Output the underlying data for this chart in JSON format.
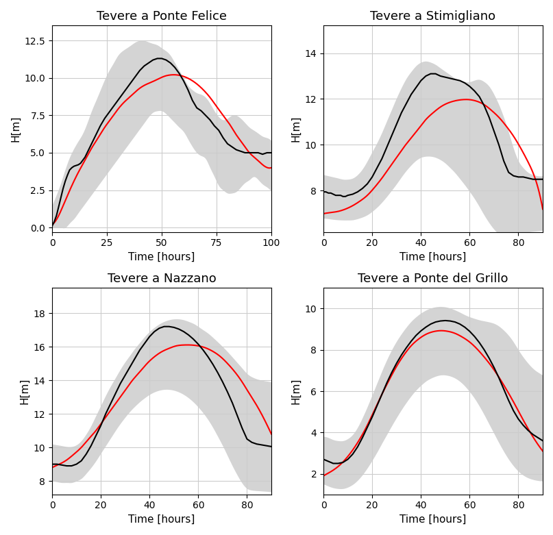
{
  "subplots": [
    {
      "title": "Tevere a Ponte Felice",
      "xlabel": "Time [hours]",
      "ylabel": "H[m]",
      "xlim": [
        0,
        100
      ],
      "ylim": [
        -0.3,
        13.5
      ],
      "yticks": [
        0.0,
        2.5,
        5.0,
        7.5,
        10.0,
        12.5
      ],
      "xticks": [
        0,
        25,
        50,
        75,
        100
      ],
      "obs_x": [
        0,
        1,
        2,
        3,
        4,
        5,
        6,
        7,
        8,
        9,
        10,
        11,
        12,
        13,
        14,
        15,
        16,
        17,
        18,
        20,
        22,
        24,
        26,
        28,
        30,
        32,
        34,
        36,
        38,
        40,
        42,
        44,
        46,
        48,
        50,
        52,
        54,
        56,
        58,
        60,
        62,
        64,
        66,
        68,
        70,
        72,
        74,
        76,
        78,
        80,
        82,
        84,
        86,
        88,
        90,
        92,
        94,
        96,
        98,
        100
      ],
      "obs_y": [
        0.1,
        0.4,
        0.8,
        1.4,
        2.0,
        2.6,
        3.1,
        3.5,
        3.85,
        4.0,
        4.1,
        4.15,
        4.2,
        4.3,
        4.5,
        4.7,
        5.0,
        5.3,
        5.6,
        6.2,
        6.8,
        7.3,
        7.7,
        8.1,
        8.5,
        8.9,
        9.3,
        9.7,
        10.1,
        10.5,
        10.8,
        11.0,
        11.2,
        11.3,
        11.3,
        11.2,
        11.0,
        10.7,
        10.3,
        9.8,
        9.2,
        8.5,
        8.0,
        7.8,
        7.5,
        7.2,
        6.8,
        6.5,
        6.0,
        5.6,
        5.4,
        5.2,
        5.1,
        5.0,
        5.0,
        5.0,
        5.0,
        4.9,
        5.0,
        5.0
      ],
      "red_x": [
        0,
        3,
        6,
        9,
        12,
        15,
        18,
        21,
        24,
        27,
        30,
        33,
        36,
        39,
        42,
        45,
        48,
        51,
        54,
        57,
        60,
        63,
        66,
        69,
        72,
        75,
        78,
        81,
        84,
        87,
        90,
        93,
        96,
        100
      ],
      "red_y": [
        0.2,
        0.8,
        1.8,
        2.8,
        3.7,
        4.5,
        5.3,
        6.0,
        6.7,
        7.3,
        7.9,
        8.4,
        8.8,
        9.2,
        9.5,
        9.7,
        9.9,
        10.1,
        10.2,
        10.2,
        10.1,
        9.9,
        9.6,
        9.2,
        8.7,
        8.1,
        7.5,
        6.9,
        6.2,
        5.6,
        5.0,
        4.6,
        4.2,
        4.0
      ],
      "upper_x": [
        0,
        2,
        4,
        6,
        8,
        10,
        12,
        14,
        16,
        18,
        20,
        22,
        24,
        26,
        28,
        30,
        32,
        34,
        36,
        38,
        40,
        42,
        44,
        46,
        48,
        50,
        52,
        54,
        56,
        58,
        60,
        62,
        64,
        66,
        68,
        70,
        72,
        74,
        76,
        78,
        80,
        82,
        84,
        86,
        88,
        90,
        92,
        94,
        96,
        98,
        100
      ],
      "upper_y": [
        1.5,
        2.2,
        3.0,
        3.9,
        4.7,
        5.3,
        5.8,
        6.3,
        7.0,
        7.8,
        8.5,
        9.2,
        9.9,
        10.5,
        11.0,
        11.5,
        11.8,
        12.0,
        12.2,
        12.4,
        12.5,
        12.5,
        12.4,
        12.3,
        12.2,
        12.0,
        11.8,
        11.5,
        11.0,
        10.5,
        10.0,
        9.5,
        9.2,
        9.0,
        8.9,
        8.7,
        8.3,
        7.8,
        7.4,
        7.2,
        7.3,
        7.5,
        7.5,
        7.3,
        7.0,
        6.7,
        6.5,
        6.3,
        6.1,
        6.0,
        5.8
      ],
      "lower_y": [
        0.0,
        0.0,
        0.0,
        0.0,
        0.3,
        0.6,
        1.0,
        1.4,
        1.8,
        2.2,
        2.6,
        3.0,
        3.4,
        3.8,
        4.2,
        4.6,
        5.0,
        5.4,
        5.8,
        6.2,
        6.6,
        7.0,
        7.4,
        7.7,
        7.8,
        7.8,
        7.6,
        7.3,
        7.0,
        6.7,
        6.4,
        5.9,
        5.4,
        5.0,
        4.8,
        4.6,
        4.0,
        3.4,
        2.8,
        2.5,
        2.3,
        2.3,
        2.4,
        2.7,
        3.0,
        3.2,
        3.4,
        3.2,
        2.9,
        2.7,
        2.4
      ]
    },
    {
      "title": "Tevere a Stimigliano",
      "xlabel": "Time [hours]",
      "ylabel": "H[m]",
      "xlim": [
        0,
        90
      ],
      "ylim": [
        6.2,
        15.2
      ],
      "yticks": [
        8,
        10,
        12,
        14
      ],
      "xticks": [
        0,
        20,
        40,
        60,
        80
      ],
      "obs_x": [
        0,
        1,
        2,
        3,
        4,
        5,
        6,
        7,
        8,
        9,
        10,
        12,
        14,
        16,
        18,
        20,
        22,
        24,
        26,
        28,
        30,
        32,
        34,
        36,
        38,
        40,
        42,
        44,
        46,
        48,
        50,
        52,
        54,
        56,
        58,
        60,
        62,
        64,
        66,
        68,
        70,
        72,
        74,
        76,
        78,
        80,
        82,
        84,
        86,
        88,
        90
      ],
      "obs_y": [
        7.95,
        7.95,
        7.9,
        7.9,
        7.85,
        7.8,
        7.8,
        7.8,
        7.75,
        7.75,
        7.8,
        7.85,
        7.95,
        8.1,
        8.3,
        8.6,
        9.0,
        9.4,
        9.9,
        10.4,
        10.9,
        11.4,
        11.8,
        12.2,
        12.5,
        12.8,
        13.0,
        13.1,
        13.1,
        13.0,
        12.95,
        12.9,
        12.85,
        12.8,
        12.7,
        12.55,
        12.35,
        12.1,
        11.7,
        11.2,
        10.6,
        10.0,
        9.3,
        8.8,
        8.65,
        8.6,
        8.6,
        8.55,
        8.5,
        8.5,
        8.5
      ],
      "red_x": [
        0,
        3,
        6,
        9,
        12,
        15,
        18,
        21,
        24,
        27,
        30,
        33,
        36,
        39,
        42,
        45,
        48,
        51,
        54,
        57,
        60,
        63,
        66,
        69,
        72,
        75,
        78,
        81,
        84,
        87,
        90
      ],
      "red_y": [
        7.0,
        7.05,
        7.1,
        7.2,
        7.35,
        7.55,
        7.8,
        8.15,
        8.55,
        9.0,
        9.45,
        9.9,
        10.3,
        10.7,
        11.1,
        11.4,
        11.65,
        11.82,
        11.92,
        11.97,
        11.97,
        11.9,
        11.75,
        11.5,
        11.2,
        10.82,
        10.38,
        9.85,
        9.25,
        8.5,
        7.2
      ],
      "upper_x": [
        0,
        2,
        4,
        6,
        8,
        10,
        12,
        14,
        16,
        18,
        20,
        22,
        24,
        26,
        28,
        30,
        32,
        34,
        36,
        38,
        40,
        42,
        44,
        46,
        48,
        50,
        52,
        54,
        56,
        58,
        60,
        62,
        64,
        66,
        68,
        70,
        72,
        74,
        76,
        78,
        80,
        82,
        84,
        86,
        88,
        90
      ],
      "upper_y": [
        8.7,
        8.65,
        8.6,
        8.55,
        8.5,
        8.5,
        8.55,
        8.7,
        8.95,
        9.3,
        9.7,
        10.1,
        10.55,
        11.05,
        11.55,
        12.05,
        12.5,
        12.9,
        13.2,
        13.45,
        13.6,
        13.65,
        13.6,
        13.5,
        13.35,
        13.2,
        13.05,
        12.9,
        12.8,
        12.75,
        12.75,
        12.82,
        12.85,
        12.75,
        12.55,
        12.2,
        11.75,
        11.2,
        10.55,
        9.85,
        9.3,
        9.0,
        8.8,
        8.7,
        8.65,
        8.65
      ],
      "lower_y": [
        6.8,
        6.78,
        6.75,
        6.73,
        6.72,
        6.72,
        6.73,
        6.78,
        6.85,
        6.95,
        7.1,
        7.28,
        7.5,
        7.75,
        8.02,
        8.3,
        8.6,
        8.88,
        9.12,
        9.32,
        9.45,
        9.5,
        9.5,
        9.45,
        9.35,
        9.2,
        9.0,
        8.78,
        8.52,
        8.25,
        7.96,
        7.65,
        7.3,
        6.93,
        6.6,
        6.32,
        6.12,
        6.0,
        5.95,
        5.98,
        6.08,
        6.15,
        6.2,
        6.23,
        6.25,
        6.28
      ]
    },
    {
      "title": "Tevere a Nazzano",
      "xlabel": "Time [hours]",
      "ylabel": "H[m]",
      "xlim": [
        0,
        90
      ],
      "ylim": [
        7.2,
        19.5
      ],
      "yticks": [
        8,
        10,
        12,
        14,
        16,
        18
      ],
      "xticks": [
        0,
        20,
        40,
        60,
        80
      ],
      "obs_x": [
        0,
        2,
        4,
        6,
        8,
        10,
        12,
        14,
        16,
        18,
        20,
        22,
        24,
        26,
        28,
        30,
        32,
        34,
        36,
        38,
        40,
        42,
        44,
        46,
        48,
        50,
        52,
        54,
        56,
        58,
        60,
        62,
        64,
        66,
        68,
        70,
        72,
        74,
        76,
        78,
        80,
        82,
        84,
        86,
        88,
        90
      ],
      "obs_y": [
        9.0,
        9.0,
        8.95,
        8.9,
        8.9,
        9.0,
        9.2,
        9.6,
        10.1,
        10.7,
        11.3,
        12.0,
        12.6,
        13.2,
        13.8,
        14.3,
        14.8,
        15.3,
        15.8,
        16.2,
        16.6,
        16.9,
        17.1,
        17.2,
        17.2,
        17.15,
        17.05,
        16.9,
        16.7,
        16.45,
        16.15,
        15.8,
        15.4,
        14.95,
        14.45,
        13.9,
        13.3,
        12.65,
        11.9,
        11.15,
        10.5,
        10.3,
        10.2,
        10.15,
        10.1,
        10.05
      ],
      "red_x": [
        0,
        3,
        6,
        9,
        12,
        15,
        18,
        21,
        24,
        27,
        30,
        33,
        36,
        39,
        42,
        45,
        48,
        51,
        54,
        57,
        60,
        63,
        66,
        69,
        72,
        75,
        78,
        81,
        84,
        87,
        90
      ],
      "red_y": [
        8.8,
        9.0,
        9.25,
        9.6,
        10.0,
        10.5,
        11.0,
        11.6,
        12.2,
        12.8,
        13.4,
        14.0,
        14.5,
        15.0,
        15.4,
        15.7,
        15.9,
        16.05,
        16.1,
        16.1,
        16.05,
        15.93,
        15.72,
        15.42,
        15.0,
        14.5,
        13.9,
        13.2,
        12.5,
        11.7,
        10.8
      ],
      "upper_x": [
        0,
        2,
        4,
        6,
        8,
        10,
        12,
        14,
        16,
        18,
        20,
        22,
        24,
        26,
        28,
        30,
        32,
        34,
        36,
        38,
        40,
        42,
        44,
        46,
        48,
        50,
        52,
        54,
        56,
        58,
        60,
        62,
        64,
        66,
        68,
        70,
        72,
        74,
        76,
        78,
        80,
        82,
        84,
        86,
        88,
        90
      ],
      "upper_y": [
        10.2,
        10.15,
        10.1,
        10.05,
        10.05,
        10.15,
        10.4,
        10.8,
        11.3,
        11.9,
        12.5,
        13.1,
        13.65,
        14.15,
        14.65,
        15.1,
        15.5,
        15.9,
        16.25,
        16.6,
        16.9,
        17.15,
        17.35,
        17.5,
        17.6,
        17.65,
        17.65,
        17.6,
        17.5,
        17.38,
        17.2,
        17.0,
        16.8,
        16.55,
        16.28,
        16.0,
        15.7,
        15.38,
        15.05,
        14.72,
        14.4,
        14.2,
        14.08,
        14.0,
        13.95,
        13.9
      ],
      "lower_y": [
        8.0,
        7.95,
        7.9,
        7.9,
        7.9,
        8.0,
        8.15,
        8.45,
        8.8,
        9.2,
        9.65,
        10.1,
        10.55,
        11.0,
        11.42,
        11.8,
        12.15,
        12.45,
        12.72,
        12.95,
        13.15,
        13.3,
        13.4,
        13.45,
        13.45,
        13.4,
        13.3,
        13.15,
        12.95,
        12.7,
        12.4,
        12.05,
        11.65,
        11.18,
        10.65,
        10.1,
        9.5,
        8.9,
        8.35,
        7.87,
        7.55,
        7.45,
        7.42,
        7.4,
        7.38,
        7.35
      ]
    },
    {
      "title": "Tevere a Ponte del Grillo",
      "xlabel": "Time [hours]",
      "ylabel": "H[m]",
      "xlim": [
        0,
        90
      ],
      "ylim": [
        1.0,
        11.0
      ],
      "yticks": [
        2,
        4,
        6,
        8,
        10
      ],
      "xticks": [
        0,
        20,
        40,
        60,
        80
      ],
      "obs_x": [
        0,
        2,
        4,
        6,
        8,
        10,
        12,
        14,
        16,
        18,
        20,
        22,
        24,
        26,
        28,
        30,
        32,
        34,
        36,
        38,
        40,
        42,
        44,
        46,
        48,
        50,
        52,
        54,
        56,
        58,
        60,
        62,
        64,
        66,
        68,
        70,
        72,
        74,
        76,
        78,
        80,
        82,
        84,
        86,
        88,
        90
      ],
      "obs_y": [
        2.7,
        2.6,
        2.5,
        2.5,
        2.55,
        2.7,
        2.95,
        3.3,
        3.75,
        4.25,
        4.75,
        5.3,
        5.85,
        6.4,
        6.9,
        7.35,
        7.75,
        8.1,
        8.42,
        8.7,
        8.92,
        9.1,
        9.25,
        9.35,
        9.4,
        9.42,
        9.4,
        9.35,
        9.25,
        9.1,
        8.9,
        8.65,
        8.35,
        8.0,
        7.6,
        7.15,
        6.65,
        6.1,
        5.55,
        5.05,
        4.65,
        4.35,
        4.1,
        3.9,
        3.75,
        3.6
      ],
      "red_x": [
        0,
        3,
        6,
        9,
        12,
        15,
        18,
        21,
        24,
        27,
        30,
        33,
        36,
        39,
        42,
        45,
        48,
        51,
        54,
        57,
        60,
        63,
        66,
        69,
        72,
        75,
        78,
        81,
        84,
        87,
        90
      ],
      "red_y": [
        1.9,
        2.1,
        2.35,
        2.7,
        3.15,
        3.7,
        4.35,
        5.1,
        5.85,
        6.55,
        7.2,
        7.75,
        8.2,
        8.52,
        8.75,
        8.88,
        8.93,
        8.9,
        8.8,
        8.62,
        8.38,
        8.05,
        7.65,
        7.2,
        6.68,
        6.1,
        5.48,
        4.82,
        4.18,
        3.6,
        3.1
      ],
      "upper_x": [
        0,
        2,
        4,
        6,
        8,
        10,
        12,
        14,
        16,
        18,
        20,
        22,
        24,
        26,
        28,
        30,
        32,
        34,
        36,
        38,
        40,
        42,
        44,
        46,
        48,
        50,
        52,
        54,
        56,
        58,
        60,
        62,
        64,
        66,
        68,
        70,
        72,
        74,
        76,
        78,
        80,
        82,
        84,
        86,
        88,
        90
      ],
      "upper_y": [
        3.8,
        3.75,
        3.65,
        3.6,
        3.6,
        3.7,
        3.9,
        4.25,
        4.72,
        5.25,
        5.82,
        6.4,
        6.98,
        7.52,
        8.0,
        8.42,
        8.78,
        9.1,
        9.38,
        9.6,
        9.78,
        9.92,
        10.02,
        10.08,
        10.1,
        10.08,
        10.02,
        9.93,
        9.82,
        9.7,
        9.6,
        9.52,
        9.45,
        9.4,
        9.35,
        9.28,
        9.15,
        8.95,
        8.7,
        8.38,
        8.0,
        7.65,
        7.35,
        7.1,
        6.92,
        6.78
      ],
      "lower_y": [
        1.5,
        1.4,
        1.32,
        1.28,
        1.28,
        1.35,
        1.48,
        1.68,
        1.95,
        2.28,
        2.65,
        3.05,
        3.48,
        3.9,
        4.32,
        4.72,
        5.1,
        5.45,
        5.77,
        6.05,
        6.28,
        6.48,
        6.62,
        6.72,
        6.78,
        6.78,
        6.73,
        6.63,
        6.47,
        6.25,
        5.97,
        5.65,
        5.27,
        4.85,
        4.4,
        3.95,
        3.5,
        3.08,
        2.7,
        2.38,
        2.12,
        1.93,
        1.8,
        1.72,
        1.67,
        1.65
      ]
    }
  ],
  "background_color": "#ffffff",
  "grid_color": "#cccccc",
  "fill_color": "#aaaaaa",
  "fill_alpha": 0.5,
  "obs_color": "#000000",
  "red_color": "#ff0000",
  "obs_linewidth": 1.5,
  "red_linewidth": 1.5
}
